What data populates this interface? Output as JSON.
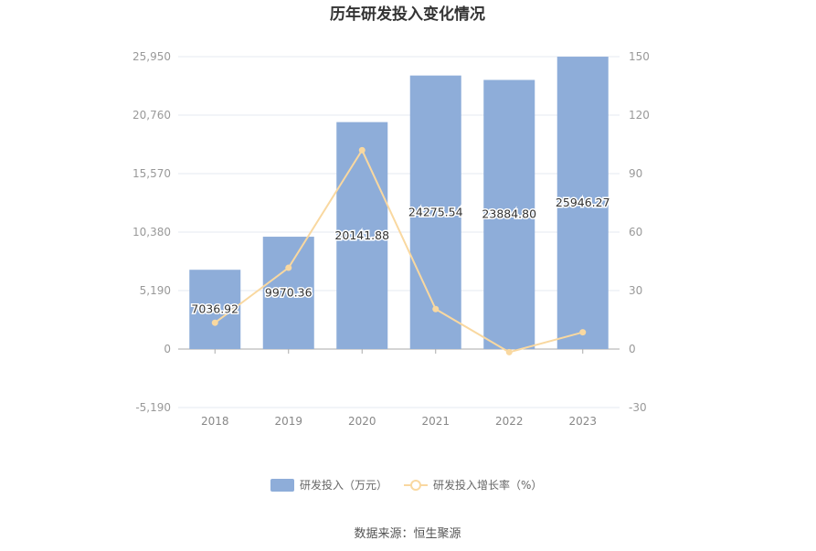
{
  "chart_data": {
    "type": "bar",
    "title": "历年研发投入变化情况",
    "categories": [
      "2018",
      "2019",
      "2020",
      "2021",
      "2022",
      "2023"
    ],
    "series": [
      {
        "name": "研发投入（万元）",
        "type": "bar",
        "axis": "left",
        "color": "#8eadd9",
        "values": [
          7036.92,
          9970.36,
          20141.88,
          24275.54,
          23884.8,
          25946.27
        ],
        "labels": [
          "7036.92",
          "9970.36",
          "20141.88",
          "24275.54",
          "23884.80",
          "25946.27"
        ]
      },
      {
        "name": "研发投入增长率（%）",
        "type": "line",
        "axis": "right",
        "color": "#f9d8a0",
        "values": [
          13.5,
          41.7,
          102.0,
          20.5,
          -1.6,
          8.6
        ]
      }
    ],
    "y_left": {
      "ticks": [
        -5190,
        0,
        5190,
        10380,
        15570,
        20760,
        25950
      ],
      "tick_labels": [
        "-5,190",
        "0",
        "5,190",
        "10,380",
        "15,570",
        "20,760",
        "25,950"
      ],
      "ylim": [
        -5190,
        25950
      ]
    },
    "y_right": {
      "ticks": [
        -30,
        0,
        30,
        60,
        90,
        120,
        150
      ],
      "tick_labels": [
        "-30",
        "0",
        "30",
        "60",
        "90",
        "120",
        "150"
      ],
      "ylim": [
        -30,
        150
      ]
    },
    "grid": true,
    "legend_position": "bottom-center"
  },
  "source_text": "数据来源：恒生聚源"
}
